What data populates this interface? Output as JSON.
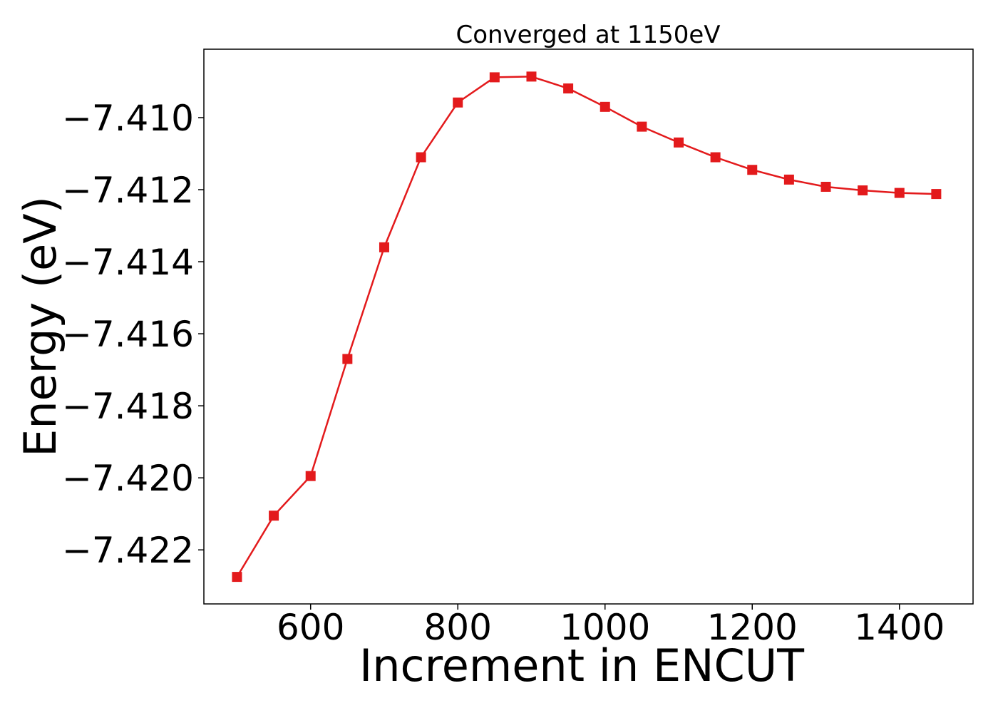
{
  "chart_data": {
    "type": "line",
    "title": "Converged at 1150eV",
    "xlabel": "Increment in ENCUT",
    "ylabel": "Energy (eV)",
    "x": [
      500,
      550,
      600,
      650,
      700,
      750,
      800,
      850,
      900,
      950,
      1000,
      1050,
      1100,
      1150,
      1200,
      1250,
      1300,
      1350,
      1400,
      1450
    ],
    "series": [
      {
        "values": [
          -7.42275,
          -7.42105,
          -7.41995,
          -7.4167,
          -7.4136,
          -7.4111,
          -7.40958,
          -7.40888,
          -7.40886,
          -7.40919,
          -7.4097,
          -7.41025,
          -7.41069,
          -7.4111,
          -7.41145,
          -7.41172,
          -7.41192,
          -7.41202,
          -7.41209,
          -7.41212
        ],
        "color": "#e31a1c",
        "marker": "square"
      }
    ],
    "xlim": [
      455,
      1500
    ],
    "ylim": [
      -7.4235,
      -7.4081
    ],
    "xticks": [
      600,
      800,
      1000,
      1200,
      1400
    ],
    "xtick_labels": [
      "600",
      "800",
      "1000",
      "1200",
      "1400"
    ],
    "yticks": [
      -7.422,
      -7.42,
      -7.418,
      -7.416,
      -7.414,
      -7.412,
      -7.41
    ],
    "ytick_labels": [
      "−7.422",
      "−7.420",
      "−7.418",
      "−7.416",
      "−7.414",
      "−7.412",
      "−7.410"
    ],
    "grid": false,
    "legend": "none"
  }
}
